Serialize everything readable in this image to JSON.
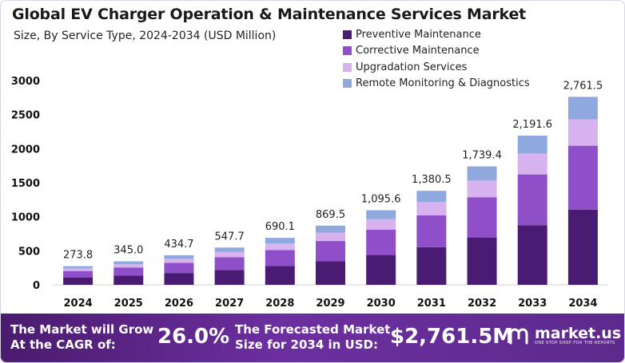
{
  "title": "Global EV Charger Operation & Maintenance Services Market",
  "subtitle": "Size, By Service Type, 2024-2034 (USD Million)",
  "legend": [
    {
      "label": "Preventive Maintenance",
      "color": "#4a1b73"
    },
    {
      "label": "Corrective Maintenance",
      "color": "#8e4fc9"
    },
    {
      "label": "Upgradation Services",
      "color": "#d6b2ee"
    },
    {
      "label": "Remote Monitoring & Diagnostics",
      "color": "#8fa9de"
    }
  ],
  "chart_data": {
    "type": "bar",
    "stacked": true,
    "title": "Global EV Charger Operation & Maintenance Services Market",
    "subtitle": "Size, By Service Type, 2024-2034 (USD Million)",
    "categories": [
      "2024",
      "2025",
      "2026",
      "2027",
      "2028",
      "2029",
      "2030",
      "2031",
      "2032",
      "2033",
      "2034"
    ],
    "totals": [
      273.8,
      345.0,
      434.7,
      547.7,
      690.1,
      869.5,
      1095.6,
      1380.5,
      1739.4,
      2191.6,
      2761.5
    ],
    "total_labels": [
      "273.8",
      "345.0",
      "434.7",
      "547.7",
      "690.1",
      "869.5",
      "1,095.6",
      "1,380.5",
      "1,739.4",
      "2,191.6",
      "2,761.5"
    ],
    "series": [
      {
        "name": "Preventive Maintenance",
        "color": "#4a1b73",
        "values": [
          109.5,
          138.0,
          173.9,
          219.1,
          276.0,
          347.8,
          438.2,
          552.2,
          695.8,
          876.6,
          1104.6
        ]
      },
      {
        "name": "Corrective Maintenance",
        "color": "#8e4fc9",
        "values": [
          93.1,
          117.3,
          147.8,
          186.2,
          234.6,
          295.6,
          372.5,
          469.4,
          591.4,
          745.1,
          938.9
        ]
      },
      {
        "name": "Upgradation Services",
        "color": "#d6b2ee",
        "values": [
          38.3,
          48.3,
          60.9,
          76.7,
          96.6,
          121.7,
          153.4,
          193.3,
          243.5,
          306.8,
          386.6
        ]
      },
      {
        "name": "Remote Monitoring & Diagnostics",
        "color": "#8fa9de",
        "values": [
          32.9,
          41.4,
          52.1,
          65.7,
          82.9,
          104.4,
          131.5,
          165.6,
          208.7,
          263.1,
          331.4
        ]
      }
    ],
    "yticks": [
      "0",
      "500",
      "1000",
      "1500",
      "2000",
      "2500",
      "3000"
    ],
    "ylim": [
      0,
      3000
    ],
    "xlabel": "",
    "ylabel": "",
    "grid": false,
    "legend_position": "top-right"
  },
  "footer": {
    "cagr_label": "The Market will Grow At the CAGR of:",
    "cagr_value": "26.0%",
    "forecast_label": "The Forecasted Market Size for 2034 in USD:",
    "forecast_value": "$2,761.5M",
    "logo_text": "market.us",
    "logo_tagline": "ONE STOP SHOP FOR THE REPORTS"
  }
}
